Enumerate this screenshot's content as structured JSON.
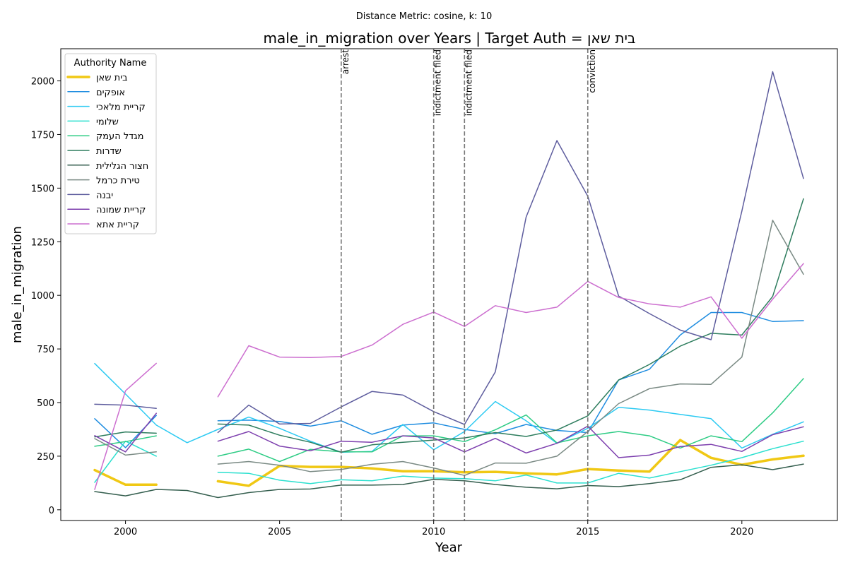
{
  "chart_data": {
    "type": "line",
    "suptitle": "Distance Metric: cosine, k: 10",
    "title": "male_in_migration over Years | Target Auth = בית שאן",
    "xlabel": "Year",
    "ylabel": "male_in_migration",
    "xlim": [
      1997.9,
      2023.1
    ],
    "ylim": [
      -50,
      2150
    ],
    "xticks": [
      2000,
      2005,
      2010,
      2015,
      2020
    ],
    "yticks": [
      0,
      250,
      500,
      750,
      1000,
      1250,
      1500,
      1750,
      2000
    ],
    "grid": false,
    "legend": {
      "title": "Authority Name",
      "position": "top-left"
    },
    "x": [
      1999,
      2000,
      2001,
      2002,
      2003,
      2004,
      2005,
      2006,
      2007,
      2008,
      2009,
      2010,
      2011,
      2012,
      2013,
      2014,
      2015,
      2016,
      2017,
      2018,
      2019,
      2020,
      2021,
      2022
    ],
    "events": [
      {
        "year": 2007,
        "label": "arrest"
      },
      {
        "year": 2010,
        "label": "indictment filed"
      },
      {
        "year": 2011,
        "label": "indictment filed"
      },
      {
        "year": 2015,
        "label": "conviction"
      }
    ],
    "series": [
      {
        "name": "בית שאן",
        "color": "#f0c814",
        "width": 3.5,
        "values": [
          185,
          117,
          117,
          null,
          133,
          112,
          205,
          200,
          200,
          193,
          180,
          180,
          175,
          177,
          170,
          165,
          190,
          183,
          178,
          325,
          242,
          210,
          235,
          252
        ]
      },
      {
        "name": "אופקים",
        "color": "#1f8de0",
        "width": 1.5,
        "values": [
          425,
          290,
          440,
          null,
          415,
          418,
          412,
          390,
          415,
          352,
          395,
          405,
          375,
          355,
          398,
          370,
          360,
          605,
          655,
          815,
          920,
          920,
          878,
          882
        ]
      },
      {
        "name": "קריית מלאכי",
        "color": "#2ccaf2",
        "width": 1.5,
        "values": [
          682,
          540,
          395,
          313,
          375,
          432,
          380,
          320,
          268,
          272,
          398,
          280,
          365,
          505,
          415,
          310,
          380,
          478,
          465,
          445,
          425,
          288,
          352,
          410
        ]
      },
      {
        "name": "שלומי",
        "color": "#2be0cf",
        "width": 1.5,
        "values": [
          128,
          320,
          250,
          null,
          175,
          170,
          138,
          122,
          140,
          135,
          157,
          148,
          145,
          135,
          162,
          125,
          125,
          170,
          148,
          178,
          208,
          243,
          285,
          320
        ]
      },
      {
        "name": "מגדל העמק",
        "color": "#2ecc85",
        "width": 1.5,
        "values": [
          296,
          318,
          345,
          null,
          250,
          283,
          225,
          282,
          270,
          270,
          345,
          345,
          318,
          373,
          442,
          312,
          345,
          365,
          345,
          288,
          345,
          318,
          452,
          612
        ]
      },
      {
        "name": "שדרות",
        "color": "#2e7d5e",
        "width": 1.5,
        "values": [
          340,
          363,
          357,
          null,
          400,
          395,
          348,
          315,
          268,
          303,
          315,
          325,
          335,
          360,
          342,
          372,
          438,
          605,
          678,
          763,
          823,
          815,
          995,
          1450
        ]
      },
      {
        "name": "חצור הגלילית",
        "color": "#345e4e",
        "width": 1.5,
        "values": [
          85,
          65,
          95,
          90,
          57,
          80,
          95,
          97,
          115,
          115,
          118,
          142,
          135,
          118,
          105,
          98,
          113,
          108,
          122,
          140,
          198,
          210,
          187,
          213
        ]
      },
      {
        "name": "טירת כרמל",
        "color": "#7a8a84",
        "width": 1.5,
        "values": [
          332,
          255,
          270,
          null,
          213,
          225,
          208,
          178,
          188,
          212,
          225,
          195,
          160,
          218,
          217,
          250,
          365,
          495,
          565,
          587,
          585,
          712,
          1350,
          1098
        ]
      },
      {
        "name": "יבנה",
        "color": "#5e5d9e",
        "width": 1.5,
        "values": [
          492,
          488,
          473,
          null,
          360,
          488,
          400,
          403,
          480,
          552,
          535,
          458,
          398,
          643,
          1365,
          1722,
          1462,
          997,
          915,
          838,
          793,
          1393,
          2043,
          1545
        ]
      },
      {
        "name": "קריית שמונה",
        "color": "#7d3fae",
        "width": 1.5,
        "values": [
          346,
          270,
          450,
          null,
          320,
          365,
          297,
          275,
          320,
          315,
          345,
          335,
          270,
          333,
          265,
          310,
          390,
          243,
          255,
          295,
          305,
          272,
          350,
          387
        ]
      },
      {
        "name": "קריית אתא",
        "color": "#cc6ecf",
        "width": 1.5,
        "values": [
          95,
          555,
          683,
          null,
          527,
          765,
          712,
          710,
          715,
          768,
          865,
          922,
          855,
          952,
          920,
          945,
          1065,
          990,
          960,
          945,
          993,
          800,
          982,
          1148
        ]
      }
    ]
  }
}
